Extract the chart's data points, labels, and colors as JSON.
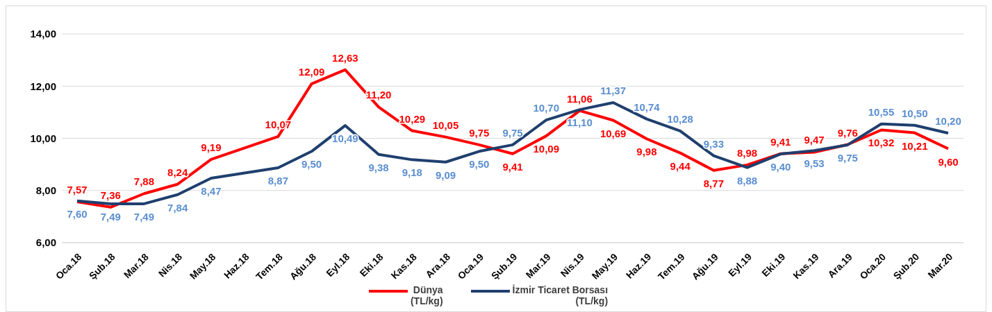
{
  "chart_data": {
    "type": "line",
    "categories": [
      "Oca.18",
      "Şub.18",
      "Mar.18",
      "Nis.18",
      "May.18",
      "Haz.18",
      "Tem.18",
      "Ağu.18",
      "Eyl.18",
      "Eki.18",
      "Kas.18",
      "Ara.18",
      "Oca.19",
      "Şub.19",
      "Mar.19",
      "Nis.19",
      "May.19",
      "Haz.19",
      "Tem.19",
      "Ağu.19",
      "Eyl.19",
      "Eki.19",
      "Kas.19",
      "Ara.19",
      "Oca.20",
      "Şub.20",
      "Mar.20"
    ],
    "series": [
      {
        "name": "Dünya\n(TL/kg)",
        "color": "#ff0000",
        "values": [
          7.57,
          7.36,
          7.88,
          8.24,
          9.19,
          9.63,
          10.07,
          12.09,
          12.63,
          11.2,
          10.29,
          10.05,
          9.75,
          9.41,
          10.09,
          11.06,
          10.69,
          9.98,
          9.44,
          8.77,
          8.98,
          9.41,
          9.47,
          9.76,
          10.32,
          10.21,
          9.6
        ],
        "value_labels": [
          "7,57",
          "7,36",
          "7,88",
          "8,24",
          "9,19",
          null,
          "10,07",
          "12,09",
          "12,63",
          "11,20",
          "10,29",
          "10,05",
          "9,75",
          "9,41",
          "10,09",
          "11,06",
          "10,69",
          "9,98",
          "9,44",
          "8,77",
          "8,98",
          "9,41",
          "9,47",
          "9,76",
          "10,32",
          "10,21",
          "9,60"
        ]
      },
      {
        "name": "İzmir Ticaret Borsası\n(TL/kg)",
        "color": "#1f3f6e",
        "values": [
          7.6,
          7.49,
          7.49,
          7.84,
          8.47,
          8.67,
          8.87,
          9.5,
          10.49,
          9.38,
          9.18,
          9.09,
          9.5,
          9.75,
          10.7,
          11.1,
          11.37,
          10.74,
          10.28,
          9.33,
          8.88,
          9.4,
          9.53,
          9.75,
          10.55,
          10.5,
          10.2
        ],
        "value_labels": [
          "7,60",
          "7,49",
          "7,49",
          "7,84",
          "8,47",
          null,
          "8,87",
          "9,50",
          "10,49",
          "9,38",
          "9,18",
          "9,09",
          "9,50",
          "9,75",
          "10,70",
          "11,10",
          "11,37",
          "10,74",
          "10,28",
          "9,33",
          "8,88",
          "9,40",
          "9,53",
          "9,75",
          "10,55",
          "10,50",
          "10,20"
        ]
      }
    ],
    "ylim": [
      6,
      14
    ],
    "yticks": [
      {
        "value": 6,
        "label": "6,00"
      },
      {
        "value": 8,
        "label": "8,00"
      },
      {
        "value": 10,
        "label": "10,00"
      },
      {
        "value": 12,
        "label": "12,00"
      },
      {
        "value": 14,
        "label": "14,00"
      }
    ],
    "grid": "y",
    "legend": "bottom",
    "marker": "none",
    "line_style": "solid"
  }
}
